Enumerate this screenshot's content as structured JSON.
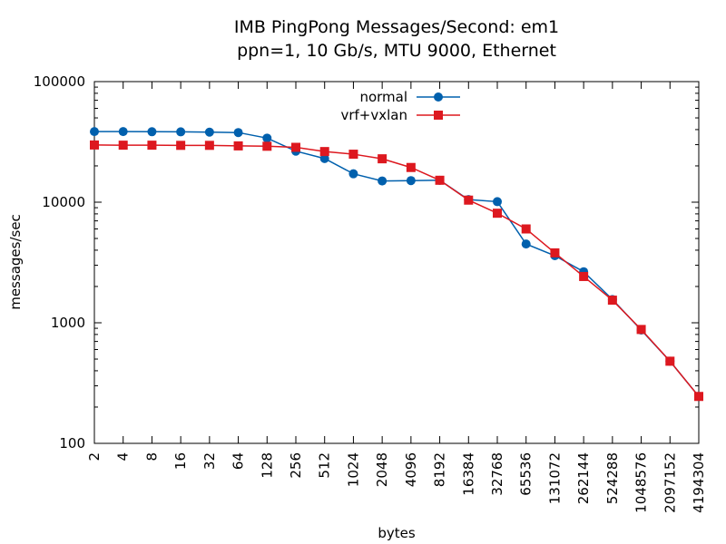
{
  "chart_data": {
    "type": "line",
    "title": "IMB PingPong Messages/Second: em1",
    "subtitle": "ppn=1, 10 Gb/s, MTU 9000, Ethernet",
    "xlabel": "bytes",
    "ylabel": "messages/sec",
    "x_scale": "log2",
    "y_scale": "log10",
    "xlim": [
      2,
      4194304
    ],
    "ylim": [
      100,
      100000
    ],
    "legend_position": "top-center",
    "grid": false,
    "x_ticks": [
      2,
      4,
      8,
      16,
      32,
      64,
      128,
      256,
      512,
      1024,
      2048,
      4096,
      8192,
      16384,
      32768,
      65536,
      131072,
      262144,
      524288,
      1048576,
      2097152,
      4194304
    ],
    "x_tick_labels": [
      "2",
      "4",
      "8",
      "16",
      "32",
      "64",
      "128",
      "256",
      "512",
      "1024",
      "2048",
      "4096",
      "8192",
      "16384",
      "32768",
      "65536",
      "131072",
      "262144",
      "524288",
      "1048576",
      "2097152",
      "4194304"
    ],
    "y_ticks": [
      100,
      1000,
      10000,
      100000
    ],
    "y_tick_labels": [
      "100",
      "1000",
      "10000",
      "100000"
    ],
    "series": [
      {
        "name": "normal",
        "color": "#0060ad",
        "marker": "circle",
        "x": [
          2,
          4,
          8,
          16,
          32,
          64,
          128,
          256,
          512,
          1024,
          2048,
          4096,
          8192,
          16384,
          32768,
          65536,
          131072,
          262144,
          524288,
          1048576,
          2097152,
          4194304
        ],
        "y": [
          38500,
          38500,
          38400,
          38300,
          38100,
          37800,
          34000,
          26500,
          23000,
          17200,
          15000,
          15100,
          15200,
          10500,
          10100,
          4500,
          3600,
          2650,
          1560,
          870,
          480,
          245
        ]
      },
      {
        "name": "vrf+vxlan",
        "color": "#dd181f",
        "marker": "square",
        "x": [
          2,
          4,
          8,
          16,
          32,
          64,
          128,
          256,
          512,
          1024,
          2048,
          4096,
          8192,
          16384,
          32768,
          65536,
          131072,
          262144,
          524288,
          1048576,
          2097152,
          4194304
        ],
        "y": [
          29800,
          29700,
          29700,
          29600,
          29600,
          29300,
          29100,
          28500,
          26300,
          25000,
          22900,
          19400,
          15200,
          10400,
          8100,
          6000,
          3800,
          2420,
          1540,
          880,
          480,
          245
        ]
      }
    ]
  }
}
